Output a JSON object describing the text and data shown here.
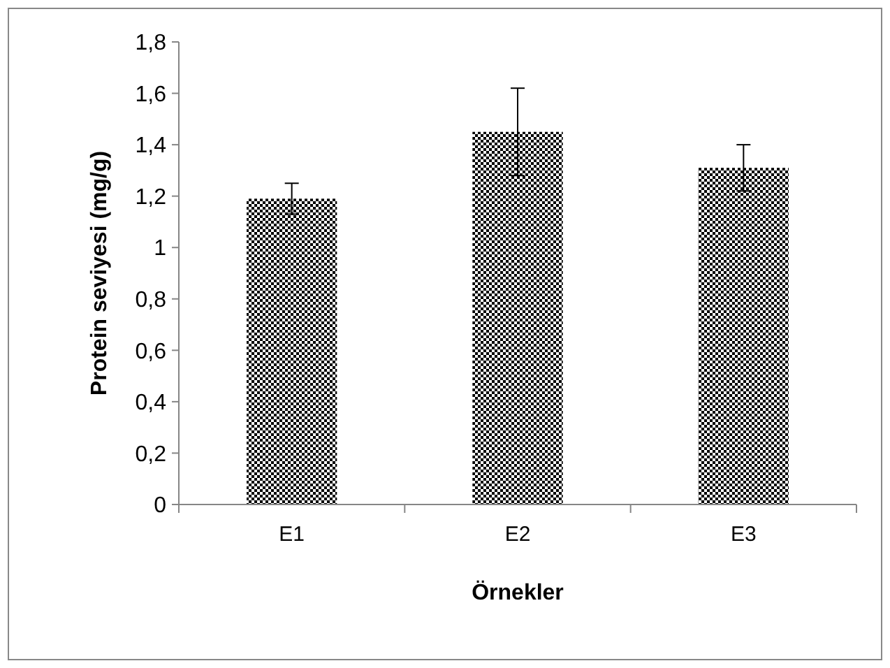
{
  "chart_data": {
    "type": "bar",
    "xlabel": "Örnekler",
    "ylabel": "Protein seviyesi (mg/g)",
    "categories": [
      "E1",
      "E2",
      "E3"
    ],
    "values": [
      1.19,
      1.45,
      1.31
    ],
    "errors": [
      0.06,
      0.17,
      0.09
    ],
    "color": "#000000",
    "ylim": [
      0,
      1.8
    ],
    "yticks": [
      0,
      {
        "value": 0.2,
        "label": "0,2"
      },
      {
        "value": 0.4,
        "label": "0,4"
      },
      {
        "value": 0.6,
        "label": "0,6"
      },
      {
        "value": 0.8,
        "label": "0,8"
      },
      1,
      {
        "value": 1.2,
        "label": "1,2"
      },
      {
        "value": 1.4,
        "label": "1,4"
      },
      {
        "value": 1.6,
        "label": "1,6"
      },
      {
        "value": 1.8,
        "label": "1,8"
      }
    ],
    "grid": false
  }
}
